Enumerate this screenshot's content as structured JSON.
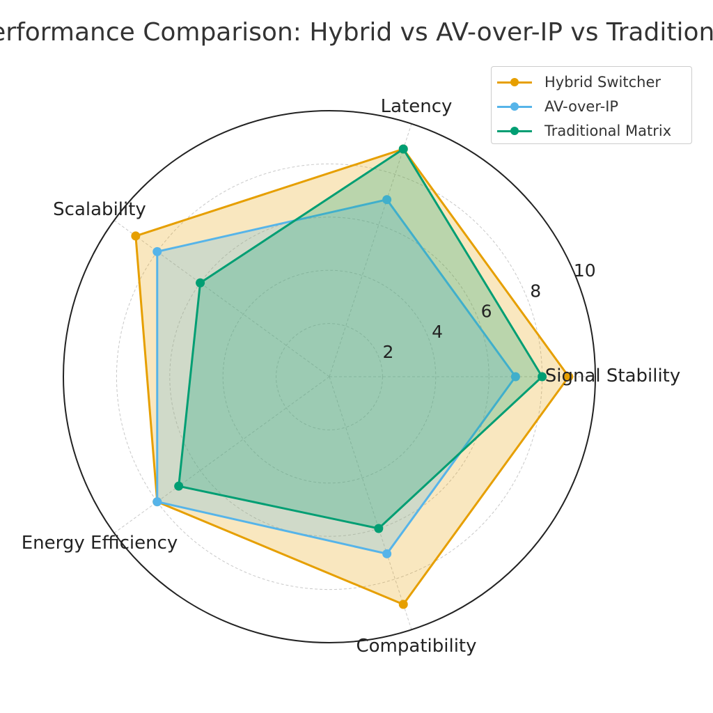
{
  "chart_data": {
    "type": "radar",
    "title": "Performance Comparison: Hybrid vs AV-over-IP vs Traditional",
    "categories": [
      "Signal Stability",
      "Latency",
      "Scalability",
      "Energy Efficiency",
      "Compatibility"
    ],
    "rlim": [
      0,
      10
    ],
    "rticks": [
      "2",
      "4",
      "6",
      "8",
      "10"
    ],
    "rtick_values": [
      2,
      4,
      6,
      8,
      10
    ],
    "grid": true,
    "legend_position": "top-right",
    "series": [
      {
        "name": "Hybrid Switcher",
        "color": "#E69F00",
        "values": [
          9,
          9,
          9,
          8,
          9
        ]
      },
      {
        "name": "AV-over-IP",
        "color": "#56B4E9",
        "values": [
          7,
          7,
          8,
          8,
          7
        ]
      },
      {
        "name": "Traditional Matrix",
        "color": "#009E73",
        "values": [
          8,
          9,
          6,
          7,
          6
        ]
      }
    ]
  }
}
